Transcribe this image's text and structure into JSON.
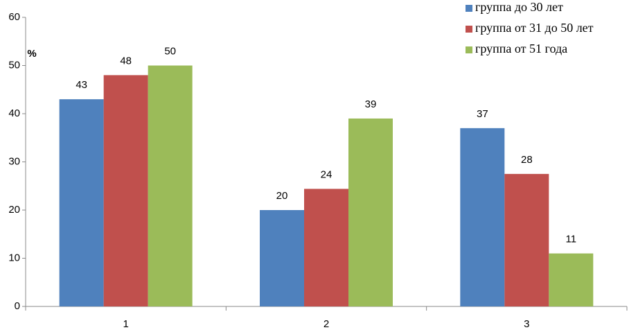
{
  "chart_data": {
    "type": "bar",
    "y_label": "%",
    "categories": [
      "1",
      "2",
      "3"
    ],
    "series": [
      {
        "name": "группа до 30 лет",
        "color": "#4f81bd",
        "values": [
          43,
          20,
          37
        ]
      },
      {
        "name": "группа от 31 до 50 лет",
        "color": "#c0504d",
        "values": [
          48,
          24.4,
          27.5
        ],
        "value_labels": [
          "48",
          "24",
          "28"
        ]
      },
      {
        "name": "группа от 51 года",
        "color": "#9bbb59",
        "values": [
          50,
          39,
          11
        ]
      }
    ],
    "ylim": [
      0,
      60
    ],
    "yticks": [
      0,
      10,
      20,
      30,
      40,
      50,
      60
    ],
    "grid": false,
    "legend": "upper right"
  }
}
